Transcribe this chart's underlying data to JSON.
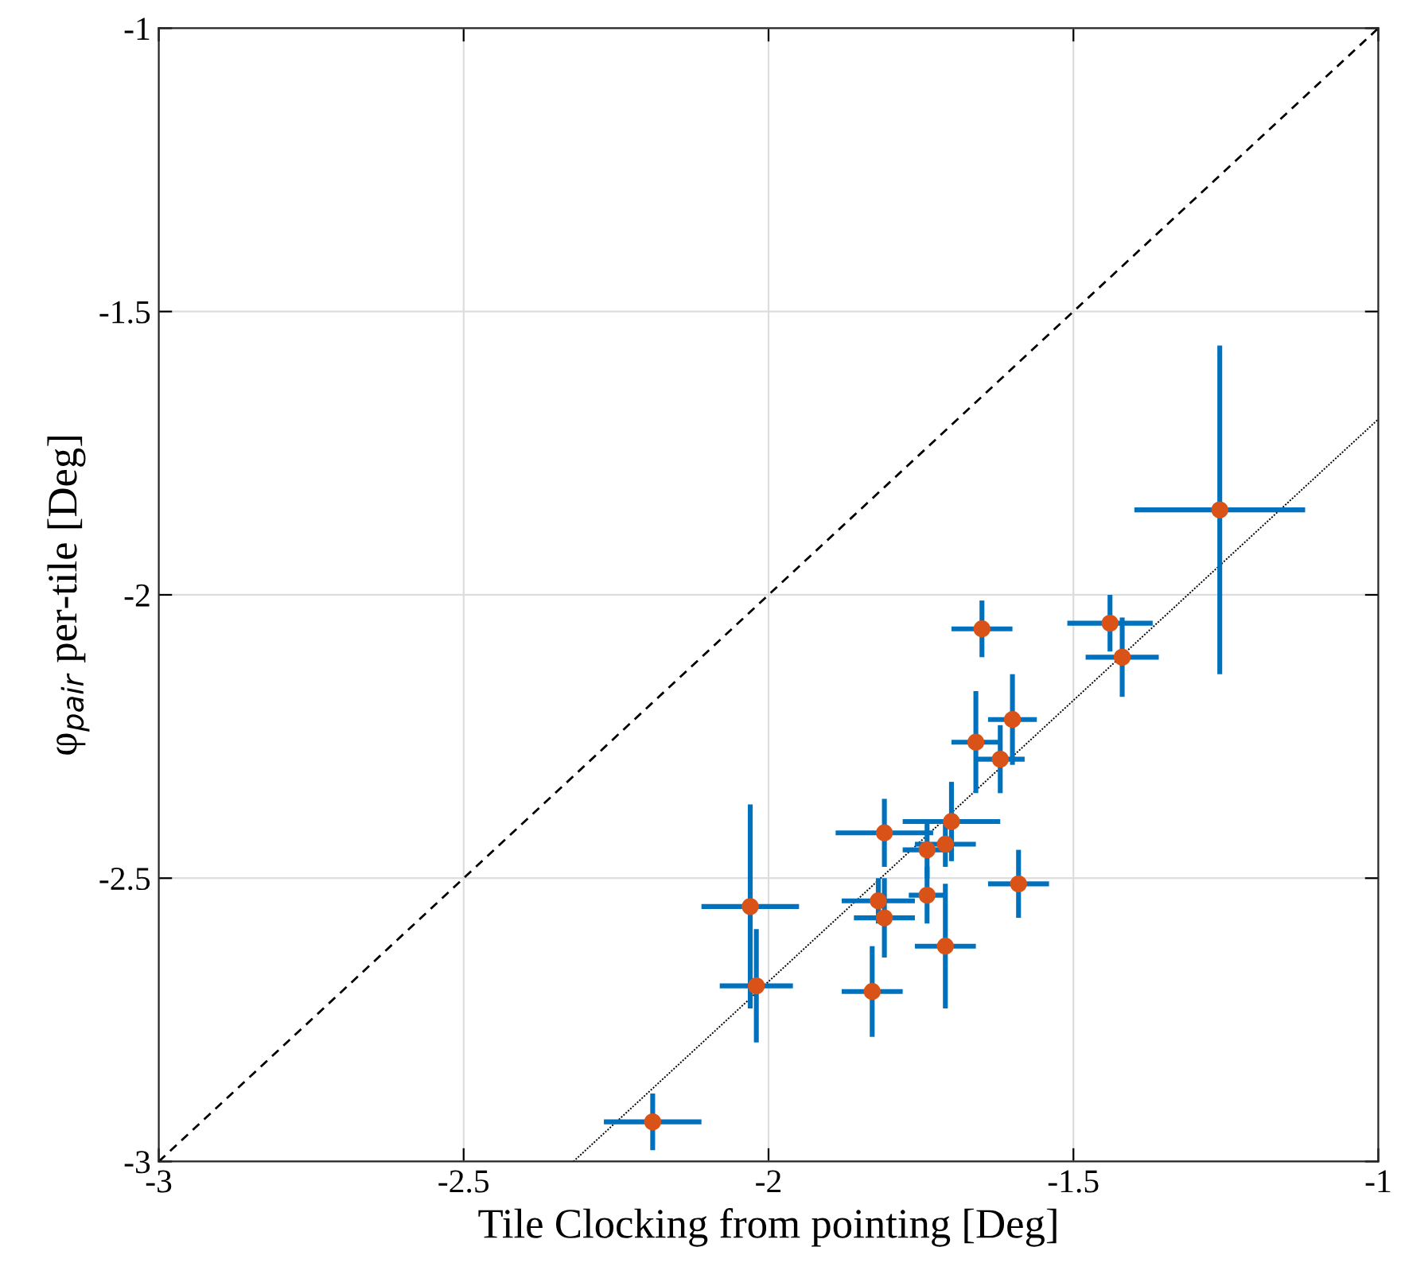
{
  "chart_data": {
    "type": "scatter",
    "xlabel": "Tile Clocking from pointing [Deg]",
    "ylabel": "φ$_{pair}$ per-tile [Deg]",
    "xlim": [
      -3,
      -1
    ],
    "ylim": [
      -3,
      -1
    ],
    "xticks": [
      -3,
      -2.5,
      -2,
      -1.5,
      -1
    ],
    "yticks": [
      -3,
      -2.5,
      -2,
      -1.5,
      -1
    ],
    "grid": true,
    "series": [
      {
        "type": "line",
        "color": "#000000",
        "line_style": "dashed",
        "marker": "none",
        "x": [
          -3,
          -1
        ],
        "values": [
          -3,
          -1
        ]
      },
      {
        "type": "line",
        "color": "#000000",
        "line_style": "dotted",
        "marker": "none",
        "x": [
          -2.32,
          -1
        ],
        "values": [
          -3,
          -1.69
        ]
      },
      {
        "color": "#0072bd",
        "colors": [
          "#d95319",
          "#d95319",
          "#d95319",
          "#d95319",
          "#d95319",
          "#d95319",
          "#d95319",
          "#d95319",
          "#d95319",
          "#d95319",
          "#d95319",
          "#d95319",
          "#d95319",
          "#d95319",
          "#d95319",
          "#d95319",
          "#d95319",
          "#d95319",
          "#d95319",
          "#d95319"
        ],
        "marker": "circle",
        "x": [
          -2.19,
          -2.03,
          -2.02,
          -1.83,
          -1.81,
          -1.74,
          -1.71,
          -1.7,
          -1.82,
          -1.81,
          -1.74,
          -1.71,
          -1.59,
          -1.26,
          -1.44,
          -1.42,
          -1.65,
          -1.6,
          -1.66,
          -1.62
        ],
        "values": [
          -2.93,
          -2.55,
          -2.69,
          -2.7,
          -2.42,
          -2.45,
          -2.44,
          -2.4,
          -2.54,
          -2.57,
          -2.53,
          -2.62,
          -2.51,
          -1.85,
          -2.05,
          -2.11,
          -2.06,
          -2.22,
          -2.26,
          -2.29
        ],
        "xerrors": [
          0.08,
          0.08,
          0.06,
          0.05,
          0.08,
          0.04,
          0.05,
          0.08,
          0.06,
          0.05,
          0.03,
          0.05,
          0.05,
          0.14,
          0.07,
          0.06,
          0.05,
          0.04,
          0.04,
          0.04
        ],
        "errors": [
          0.05,
          0.18,
          0.1,
          0.08,
          0.06,
          0.05,
          0.04,
          0.07,
          0.04,
          0.07,
          0.05,
          0.11,
          0.06,
          0.29,
          0.05,
          0.07,
          0.05,
          0.08,
          0.09,
          0.06
        ]
      }
    ]
  }
}
